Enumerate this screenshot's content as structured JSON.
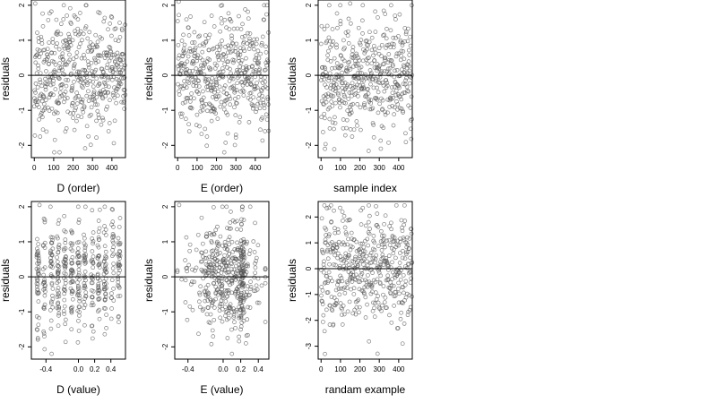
{
  "figure": {
    "colors": {
      "point": "#555555",
      "axis": "#000000",
      "background": "#ffffff"
    },
    "reference_line_y": 0
  },
  "chart_data": [
    {
      "type": "scatter",
      "xlabel": "D (order)",
      "ylabel": "residuals",
      "xticks": [
        0,
        100,
        200,
        300,
        400
      ],
      "yticks": [
        -2,
        -1,
        0,
        1,
        2
      ],
      "xlim": [
        -15,
        470
      ],
      "ylim": [
        -2.35,
        2.15
      ],
      "n_points": 470,
      "y_sd": 0.78,
      "x_kind": "index",
      "seed": 11,
      "grid": false,
      "points": [
        [
          5,
          2.05
        ],
        [
          30,
          -1.75
        ],
        [
          45,
          -1.55
        ],
        [
          130,
          -2.2
        ],
        [
          320,
          -1.3
        ],
        [
          440,
          1.5
        ],
        [
          330,
          1.8
        ],
        [
          150,
          1.6
        ]
      ]
    },
    {
      "type": "scatter",
      "xlabel": "E (order)",
      "ylabel": "residuals",
      "xticks": [
        0,
        100,
        200,
        300,
        400
      ],
      "yticks": [
        -2,
        -1,
        0,
        1,
        2
      ],
      "xlim": [
        -15,
        470
      ],
      "ylim": [
        -2.35,
        2.15
      ],
      "n_points": 470,
      "y_sd": 0.78,
      "x_kind": "index",
      "seed": 23,
      "grid": false,
      "points": [
        [
          5,
          2.1
        ],
        [
          175,
          1.7
        ],
        [
          270,
          1.6
        ],
        [
          300,
          -1.7
        ],
        [
          240,
          -2.2
        ],
        [
          60,
          -1.6
        ]
      ]
    },
    {
      "type": "scatter",
      "xlabel": "sample index",
      "ylabel": "residuals",
      "xticks": [
        0,
        100,
        200,
        300,
        400
      ],
      "yticks": [
        -2,
        -1,
        0,
        1,
        2
      ],
      "xlim": [
        -15,
        470
      ],
      "ylim": [
        -2.35,
        2.15
      ],
      "n_points": 470,
      "y_sd": 0.78,
      "x_kind": "index",
      "seed": 37,
      "grid": false,
      "points": [
        [
          150,
          2.05
        ],
        [
          100,
          1.55
        ],
        [
          330,
          1.75
        ],
        [
          20,
          -2.1
        ],
        [
          160,
          -1.75
        ],
        [
          170,
          -1.55
        ]
      ]
    },
    {
      "type": "scatter",
      "xlabel": "D (value)",
      "ylabel": "residuals",
      "xticks": [
        -0.4,
        0.0,
        0.2,
        0.4
      ],
      "xticklabels": [
        "-0.4",
        "0.0",
        "0.2",
        "0.4"
      ],
      "yticks": [
        -2,
        -1,
        0,
        1,
        2
      ],
      "xlim": [
        -0.58,
        0.58
      ],
      "ylim": [
        -2.35,
        2.15
      ],
      "n_points": 470,
      "y_sd": 0.78,
      "x_kind": "discrete",
      "x_levels": [
        -0.5,
        -0.42,
        -0.33,
        -0.25,
        -0.17,
        -0.08,
        0.0,
        0.08,
        0.17,
        0.25,
        0.33,
        0.42,
        0.5
      ],
      "seed": 51,
      "grid": false,
      "points": [
        [
          -0.48,
          2.05
        ],
        [
          -0.42,
          -1.7
        ],
        [
          -0.33,
          -2.2
        ],
        [
          0.25,
          1.6
        ],
        [
          -0.5,
          -1.75
        ]
      ]
    },
    {
      "type": "scatter",
      "xlabel": "E (value)",
      "ylabel": "residuals",
      "xticks": [
        -0.4,
        0.0,
        0.2,
        0.4
      ],
      "xticklabels": [
        "-0.4",
        "0.0",
        "0.2",
        "0.4"
      ],
      "yticks": [
        -2,
        -1,
        0,
        1,
        2
      ],
      "xlim": [
        -0.55,
        0.52
      ],
      "ylim": [
        -2.35,
        2.15
      ],
      "n_points": 470,
      "y_sd": 0.78,
      "x_kind": "clustered",
      "seed": 67,
      "grid": false,
      "points": [
        [
          -0.5,
          2.05
        ],
        [
          0.1,
          -2.2
        ],
        [
          0.05,
          -1.75
        ],
        [
          0.08,
          1.55
        ]
      ]
    },
    {
      "type": "scatter",
      "xlabel": "randam example",
      "ylabel": "residuals",
      "xticks": [
        0,
        100,
        200,
        300,
        400
      ],
      "yticks": [
        -3,
        -2,
        -1,
        0,
        1,
        2
      ],
      "xlim": [
        -15,
        470
      ],
      "ylim": [
        -3.5,
        2.6
      ],
      "n_points": 470,
      "y_sd": 1.15,
      "x_kind": "index",
      "seed": 83,
      "grid": false,
      "points": [
        [
          20,
          -3.3
        ],
        [
          420,
          -2.9
        ],
        [
          215,
          2.35
        ],
        [
          110,
          2.2
        ]
      ]
    }
  ]
}
